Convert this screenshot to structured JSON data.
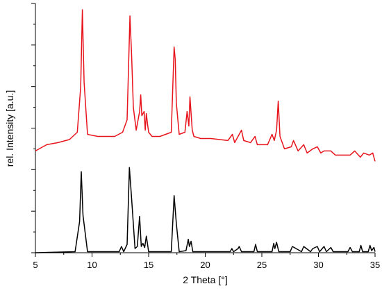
{
  "chart_data": {
    "type": "line",
    "xlabel": "2 Theta [°]",
    "ylabel": "rel. Intensity [a.u.]",
    "xlim": [
      5,
      35
    ],
    "ylim": [
      0,
      12
    ],
    "x_ticks": [
      "5",
      "10",
      "15",
      "20",
      "25",
      "30",
      "35"
    ],
    "y_tick_labels": false,
    "grid": false,
    "legend": "none",
    "series": [
      {
        "color": "#e8141c",
        "x": [
          5.0,
          6.0,
          7.0,
          8.0,
          8.7,
          9.0,
          9.15,
          9.3,
          9.6,
          10.5,
          12.0,
          12.7,
          13.1,
          13.35,
          13.5,
          13.65,
          13.9,
          14.2,
          14.3,
          14.4,
          14.6,
          14.7,
          14.8,
          14.9,
          15.0,
          15.3,
          16.0,
          17.0,
          17.25,
          17.35,
          17.45,
          17.7,
          18.2,
          18.4,
          18.55,
          18.65,
          18.85,
          19.0,
          19.6,
          20.5,
          22.0,
          22.4,
          22.6,
          23.0,
          23.2,
          23.4,
          24.0,
          24.4,
          24.6,
          25.5,
          25.9,
          26.1,
          26.3,
          26.45,
          26.6,
          27.0,
          27.6,
          27.8,
          28.2,
          28.7,
          29.0,
          29.5,
          29.9,
          30.2,
          30.5,
          31.1,
          31.5,
          32.0,
          32.8,
          33.2,
          33.7,
          34.0,
          34.5,
          34.8,
          35.0
        ],
        "y": [
          4.9,
          5.2,
          5.3,
          5.45,
          5.8,
          8.0,
          11.7,
          8.2,
          5.7,
          5.6,
          5.6,
          5.8,
          6.4,
          11.4,
          9.5,
          7.0,
          5.9,
          6.8,
          7.6,
          6.6,
          6.8,
          5.9,
          6.7,
          6.2,
          5.8,
          5.6,
          5.6,
          5.8,
          9.9,
          9.3,
          7.2,
          5.7,
          5.8,
          6.8,
          6.1,
          7.5,
          5.9,
          5.6,
          5.5,
          5.5,
          5.4,
          5.7,
          5.3,
          5.7,
          5.9,
          5.4,
          5.3,
          5.6,
          5.2,
          5.2,
          5.7,
          5.4,
          5.9,
          7.3,
          5.6,
          5.0,
          5.1,
          5.4,
          4.9,
          5.2,
          4.8,
          5.0,
          5.1,
          4.8,
          4.9,
          4.9,
          4.7,
          4.7,
          4.7,
          4.9,
          4.6,
          4.8,
          4.7,
          4.8,
          4.4
        ]
      },
      {
        "color": "#000000",
        "x": [
          5.0,
          8.5,
          8.9,
          9.05,
          9.2,
          9.6,
          12.4,
          12.6,
          12.8,
          13.1,
          13.3,
          13.5,
          13.8,
          14.0,
          14.2,
          14.35,
          14.5,
          14.65,
          14.8,
          15.0,
          17.0,
          17.25,
          17.45,
          17.7,
          18.3,
          18.5,
          18.6,
          18.75,
          18.9,
          22.2,
          22.35,
          22.5,
          22.9,
          23.0,
          23.2,
          24.3,
          24.45,
          24.6,
          25.9,
          26.05,
          26.15,
          26.3,
          26.5,
          27.5,
          27.7,
          28.5,
          28.7,
          29.3,
          29.5,
          29.9,
          30.1,
          30.5,
          30.7,
          31.1,
          31.3,
          32.6,
          32.8,
          33.0,
          33.6,
          33.75,
          33.9,
          34.4,
          34.55,
          34.7,
          34.9,
          35.0
        ],
        "y": [
          0.0,
          0.05,
          1.5,
          3.9,
          1.8,
          0.05,
          0.05,
          0.3,
          0.05,
          0.4,
          4.1,
          2.6,
          0.2,
          0.3,
          1.75,
          0.3,
          0.45,
          0.25,
          0.8,
          0.05,
          0.05,
          2.75,
          1.4,
          0.05,
          0.1,
          0.65,
          0.3,
          0.55,
          0.05,
          0.05,
          0.2,
          0.05,
          0.2,
          0.3,
          0.05,
          0.05,
          0.4,
          0.05,
          0.05,
          0.45,
          0.2,
          0.5,
          0.05,
          0.05,
          0.3,
          0.05,
          0.3,
          0.05,
          0.2,
          0.3,
          0.05,
          0.3,
          0.05,
          0.25,
          0.05,
          0.05,
          0.25,
          0.05,
          0.05,
          0.35,
          0.05,
          0.05,
          0.35,
          0.1,
          0.25,
          0.05
        ]
      }
    ]
  }
}
